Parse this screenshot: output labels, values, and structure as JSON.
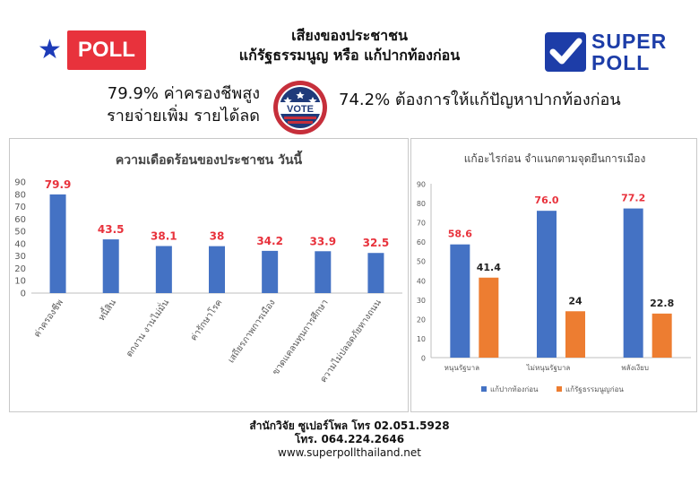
{
  "logos": {
    "poll_badge_label": "POLL",
    "superpoll_top": "SUPER",
    "superpoll_bottom": "POLL",
    "vote_badge_text": "VOTE"
  },
  "header": {
    "title_line1": "เสียงของประชาชน",
    "title_line2": "แก้รัฐธรรมนูญ หรือ แก้ปากท้องก่อน"
  },
  "highlights": {
    "left_line1": "79.9% ค่าครองชีพสูง",
    "left_line2": "รายจ่ายเพิ่ม รายได้ลด",
    "right_line": "74.2% ต้องการให้แก้ปัญหาปากท้องก่อน"
  },
  "colors": {
    "blue": "#4472c4",
    "orange": "#ed7d31",
    "red_label": "#e8323c",
    "brand_blue": "#1d3da8"
  },
  "chart_data": [
    {
      "type": "bar",
      "title": "ความเดือดร้อนของประชาชน วันนี้",
      "categories": [
        "ค่าครองชีพ",
        "หนี้สิน",
        "ตกงาน งานไม่มั่น",
        "ค่ารักษาโรค",
        "เสถียรภาพการเมือง",
        "ขาดแคลนทุนการศึกษา",
        "ความไม่ปลอดภัยทางถนน"
      ],
      "values": [
        79.9,
        43.5,
        38.1,
        38,
        34.2,
        33.9,
        32.5
      ],
      "value_labels": [
        "79.9",
        "43.5",
        "38.1",
        "38",
        "34.2",
        "33.9",
        "32.5"
      ],
      "ylim": [
        0,
        90
      ],
      "yticks": [
        "0",
        "10",
        "20",
        "30",
        "40",
        "50",
        "60",
        "70",
        "80",
        "90"
      ],
      "grid": false,
      "legend": "none"
    },
    {
      "type": "bar",
      "title": "แก้อะไรก่อน จำแนกตามจุดยืนการเมือง",
      "categories": [
        "หนุนรัฐบาล",
        "ไม่หนุนรัฐบาล",
        "พลังเงียบ"
      ],
      "series": [
        {
          "name": "แก้ปากท้องก่อน",
          "values": [
            58.6,
            76.0,
            77.2
          ],
          "value_labels": [
            "58.6",
            "76.0",
            "77.2"
          ]
        },
        {
          "name": "แก้รัฐธรรมนูญก่อน",
          "values": [
            41.4,
            24,
            22.8
          ],
          "value_labels": [
            "41.4",
            "24",
            "22.8"
          ]
        }
      ],
      "ylim": [
        0,
        90
      ],
      "yticks": [
        "0",
        "10",
        "20",
        "30",
        "40",
        "50",
        "60",
        "70",
        "80",
        "90"
      ],
      "grid": false,
      "legend": "bottom"
    }
  ],
  "footer": {
    "line1": "สำนักวิจัย ซูเปอร์โพล โทร 02.051.5928",
    "line2": "โทร. 064.224.2646",
    "line3": "www.superpollthailand.net"
  }
}
